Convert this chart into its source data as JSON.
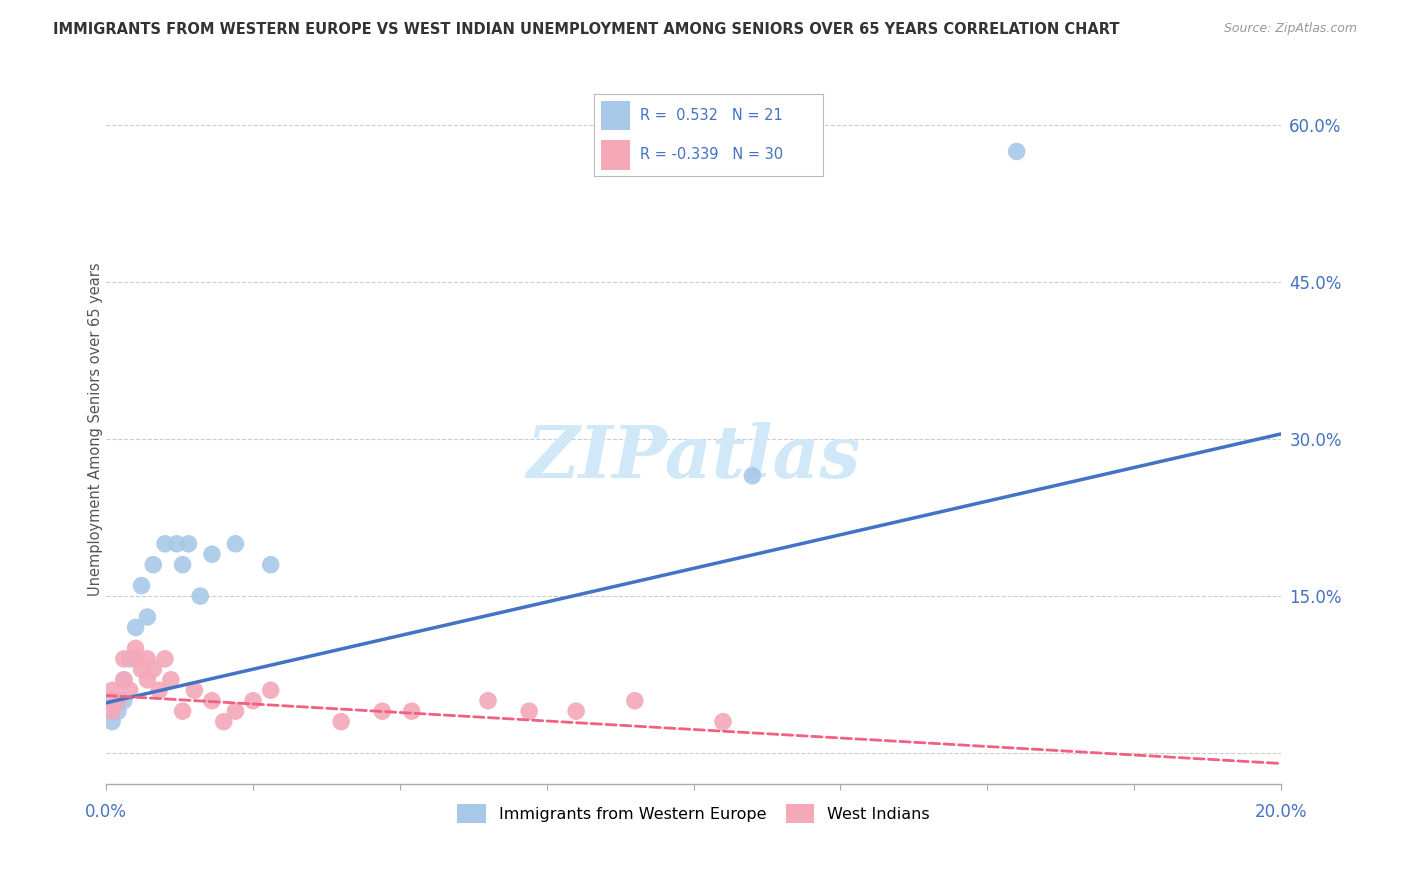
{
  "title": "IMMIGRANTS FROM WESTERN EUROPE VS WEST INDIAN UNEMPLOYMENT AMONG SENIORS OVER 65 YEARS CORRELATION CHART",
  "source": "Source: ZipAtlas.com",
  "ylabel": "Unemployment Among Seniors over 65 years",
  "xlim": [
    0.0,
    0.2
  ],
  "ylim": [
    -0.03,
    0.65
  ],
  "xtick_positions": [
    0.0,
    0.025,
    0.05,
    0.075,
    0.1,
    0.125,
    0.15,
    0.175,
    0.2
  ],
  "xtick_labels_show": {
    "0.0": "0.0%",
    "0.2": "20.0%"
  },
  "ytick_right_values": [
    0.0,
    0.15,
    0.3,
    0.45,
    0.6
  ],
  "ytick_right_labels": [
    "",
    "15.0%",
    "30.0%",
    "45.0%",
    "60.0%"
  ],
  "blue_color": "#A8C8E8",
  "pink_color": "#F4A8B8",
  "blue_line_color": "#4472C4",
  "pink_line_color": "#F06080",
  "blue_line_x": [
    0.0,
    0.2
  ],
  "blue_line_y": [
    0.048,
    0.305
  ],
  "pink_line_x": [
    0.0,
    0.2
  ],
  "pink_line_y": [
    0.055,
    -0.01
  ],
  "blue_points_x": [
    0.001,
    0.001,
    0.002,
    0.002,
    0.003,
    0.003,
    0.004,
    0.005,
    0.006,
    0.007,
    0.008,
    0.01,
    0.012,
    0.013,
    0.014,
    0.016,
    0.018,
    0.022,
    0.028,
    0.11,
    0.155
  ],
  "blue_points_y": [
    0.05,
    0.03,
    0.05,
    0.04,
    0.07,
    0.05,
    0.09,
    0.12,
    0.16,
    0.13,
    0.18,
    0.2,
    0.2,
    0.18,
    0.2,
    0.15,
    0.19,
    0.2,
    0.18,
    0.265,
    0.575
  ],
  "pink_points_x": [
    0.001,
    0.001,
    0.002,
    0.003,
    0.003,
    0.004,
    0.005,
    0.005,
    0.006,
    0.007,
    0.007,
    0.008,
    0.009,
    0.01,
    0.011,
    0.013,
    0.015,
    0.018,
    0.02,
    0.022,
    0.025,
    0.028,
    0.04,
    0.047,
    0.052,
    0.065,
    0.072,
    0.08,
    0.09,
    0.105
  ],
  "pink_points_y": [
    0.06,
    0.04,
    0.05,
    0.07,
    0.09,
    0.06,
    0.09,
    0.1,
    0.08,
    0.07,
    0.09,
    0.08,
    0.06,
    0.09,
    0.07,
    0.04,
    0.06,
    0.05,
    0.03,
    0.04,
    0.05,
    0.06,
    0.03,
    0.04,
    0.04,
    0.05,
    0.04,
    0.04,
    0.05,
    0.03
  ],
  "legend_blue_text": "R =  0.532   N = 21",
  "legend_pink_text": "R = -0.339   N = 30",
  "legend_text_color": "#4472C4",
  "watermark_text": "ZIPatlas",
  "watermark_color": "#D0E8F8",
  "grid_color": "#CCCCCC",
  "bottom_legend_label1": "Immigrants from Western Europe",
  "bottom_legend_label2": "West Indians"
}
